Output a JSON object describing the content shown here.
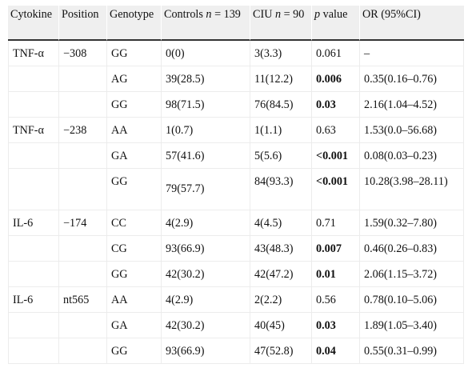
{
  "table": {
    "headers": {
      "cytokine": "Cytokine",
      "position": "Position",
      "genotype": "Genotype",
      "controls_prefix": "Controls ",
      "controls_n": "n",
      "controls_suffix": " = 139",
      "ciu_prefix": "CIU ",
      "ciu_n": "n",
      "ciu_suffix": " = 90",
      "p_italic": "p",
      "p_suffix": " value",
      "or": "OR (95%CI)"
    },
    "rows": [
      {
        "cytokine": "TNF-α",
        "position": "−308",
        "genotype": "GG",
        "controls": "0(0)",
        "ciu": "3(3.3)",
        "p": "0.061",
        "p_bold": false,
        "or": "–"
      },
      {
        "cytokine": "",
        "position": "",
        "genotype": "AG",
        "controls": "39(28.5)",
        "ciu": "11(12.2)",
        "p": "0.006",
        "p_bold": true,
        "or": "0.35(0.16–0.76)"
      },
      {
        "cytokine": "",
        "position": "",
        "genotype": "GG",
        "controls": "98(71.5)",
        "ciu": "76(84.5)",
        "p": "0.03",
        "p_bold": true,
        "or": "2.16(1.04–4.52)"
      },
      {
        "cytokine": "TNF-α",
        "position": "−238",
        "genotype": "AA",
        "controls": "1(0.7)",
        "ciu": "1(1.1)",
        "p": "0.63",
        "p_bold": false,
        "or": "1.53(0.0–56.68)"
      },
      {
        "cytokine": "",
        "position": "",
        "genotype": "GA",
        "controls": "57(41.6)",
        "ciu": "5(5.6)",
        "p": "<0.001",
        "p_bold": true,
        "or": "0.08(0.03–0.23)"
      },
      {
        "cytokine": "",
        "position": "",
        "genotype": "GG",
        "controls": "79(57.7)",
        "ciu": "84(93.3)",
        "p": "<0.001",
        "p_bold": true,
        "or": "10.28(3.98–28.11)"
      },
      {
        "cytokine": "IL-6",
        "position": "−174",
        "genotype": "CC",
        "controls": "4(2.9)",
        "ciu": "4(4.5)",
        "p": "0.71",
        "p_bold": false,
        "or": "1.59(0.32–7.80)"
      },
      {
        "cytokine": "",
        "position": "",
        "genotype": "CG",
        "controls": "93(66.9)",
        "ciu": "43(48.3)",
        "p": "0.007",
        "p_bold": true,
        "or": "0.46(0.26–0.83)"
      },
      {
        "cytokine": "",
        "position": "",
        "genotype": "GG",
        "controls": "42(30.2)",
        "ciu": "42(47.2)",
        "p": "0.01",
        "p_bold": true,
        "or": "2.06(1.15–3.72)"
      },
      {
        "cytokine": "IL-6",
        "position": "nt565",
        "genotype": "AA",
        "controls": "4(2.9)",
        "ciu": "2(2.2)",
        "p": "0.56",
        "p_bold": false,
        "or": "0.78(0.10–5.06)"
      },
      {
        "cytokine": "",
        "position": "",
        "genotype": "GA",
        "controls": "42(30.2)",
        "ciu": "40(45)",
        "p": "0.03",
        "p_bold": true,
        "or": "1.89(1.05–3.40)"
      },
      {
        "cytokine": "",
        "position": "",
        "genotype": "GG",
        "controls": "93(66.9)",
        "ciu": "47(52.8)",
        "p": "0.04",
        "p_bold": true,
        "or": "0.55(0.31–0.99)"
      }
    ]
  }
}
